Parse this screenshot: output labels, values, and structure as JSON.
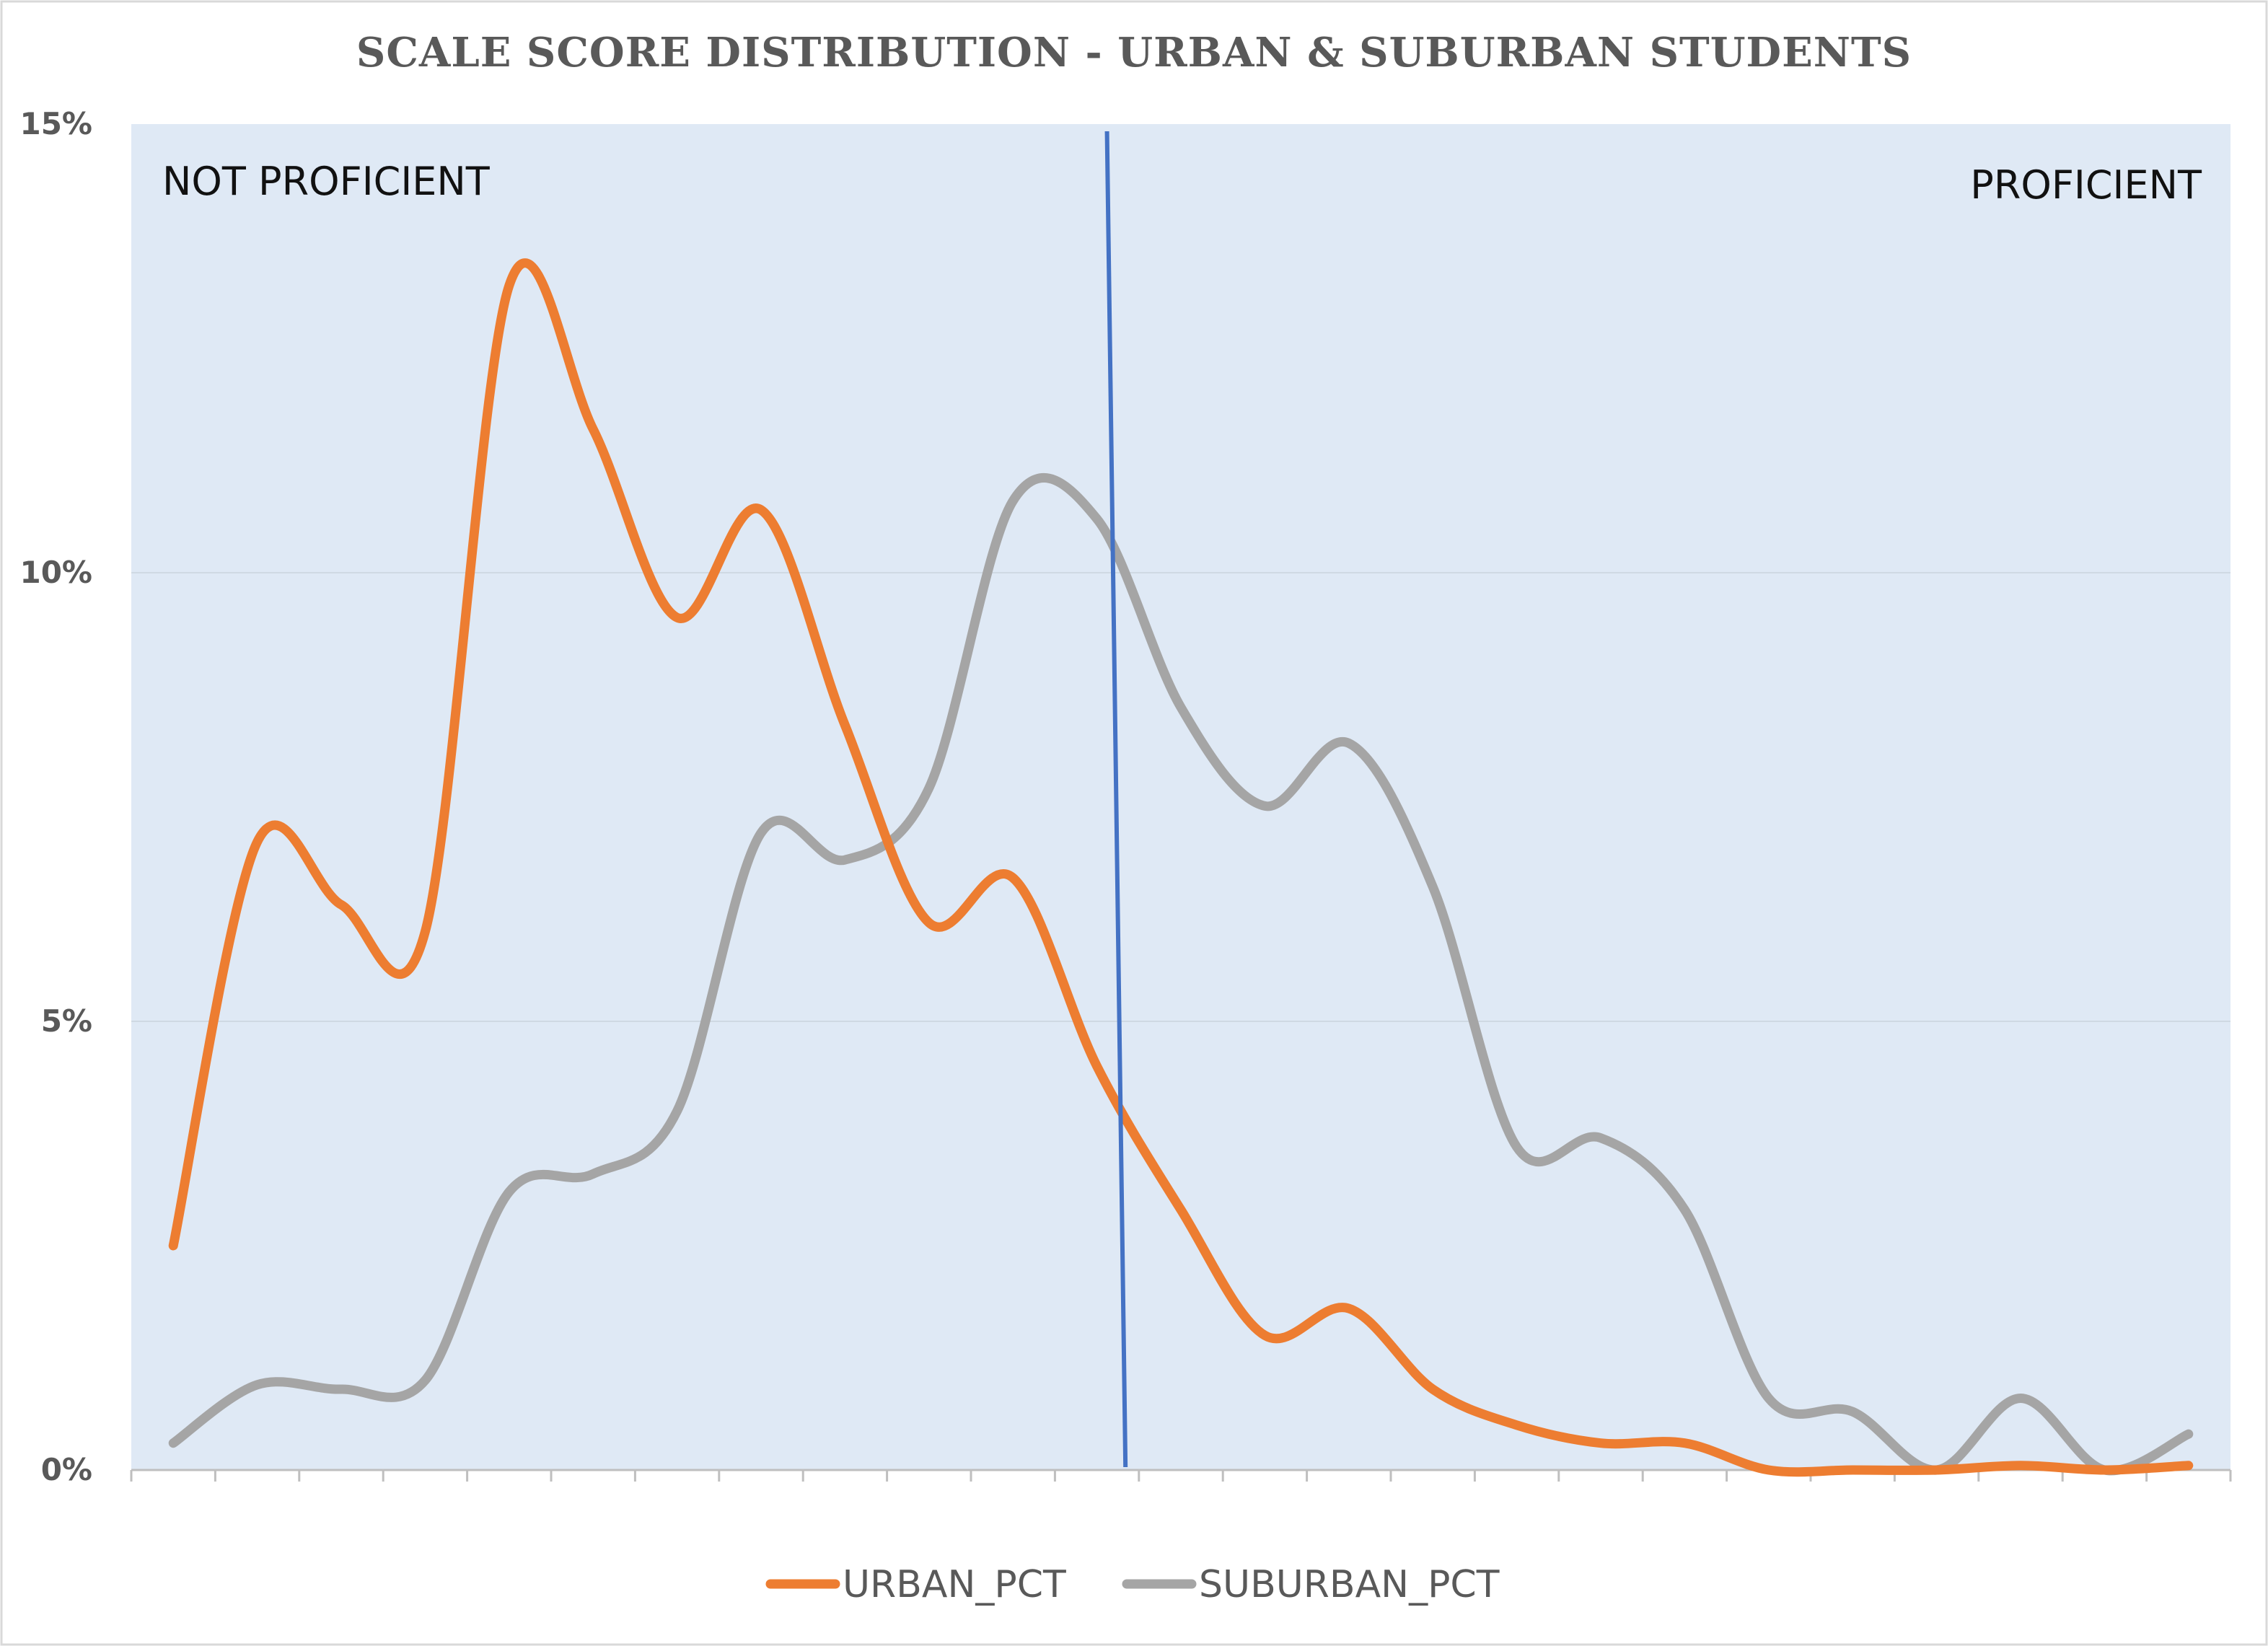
{
  "chart_data": {
    "type": "line",
    "title": "SCALE SCORE DISTRIBUTION - URBAN & SUBURBAN STUDENTS",
    "xlabel": "",
    "ylabel": "",
    "x": [
      1,
      2,
      3,
      4,
      5,
      6,
      7,
      8,
      9,
      10,
      11,
      12,
      13,
      14,
      15,
      16,
      17,
      18,
      19,
      20,
      21,
      22,
      23,
      24,
      25
    ],
    "ylim": [
      0,
      15
    ],
    "yticks": [
      "0%",
      "5%",
      "10%",
      "15%"
    ],
    "ytick_values": [
      0,
      5,
      10,
      15
    ],
    "grid": true,
    "legend_position": "bottom",
    "cut_line": {
      "x_top": 12.12,
      "x_bottom": 12.34,
      "color": "#4472c4"
    },
    "annotations": {
      "left": "NOT PROFICIENT",
      "right": "PROFICIENT"
    },
    "series": [
      {
        "name": "URBAN_PCT",
        "color": "#ed7d31",
        "values": [
          2.5,
          7.0,
          6.3,
          6.0,
          13.2,
          11.6,
          9.5,
          10.7,
          8.3,
          6.1,
          6.6,
          4.5,
          2.9,
          1.5,
          1.8,
          0.9,
          0.5,
          0.3,
          0.3,
          0.0,
          0.0,
          0.0,
          0.05,
          0.0,
          0.05
        ]
      },
      {
        "name": "SUBURBAN_PCT",
        "color": "#a5a5a5",
        "values": [
          0.3,
          0.95,
          0.9,
          1.0,
          3.1,
          3.3,
          4.0,
          7.1,
          6.8,
          7.6,
          10.8,
          10.6,
          8.5,
          7.4,
          8.1,
          6.5,
          3.6,
          3.7,
          2.9,
          0.8,
          0.65,
          0.0,
          0.8,
          0.0,
          0.4
        ]
      }
    ]
  }
}
